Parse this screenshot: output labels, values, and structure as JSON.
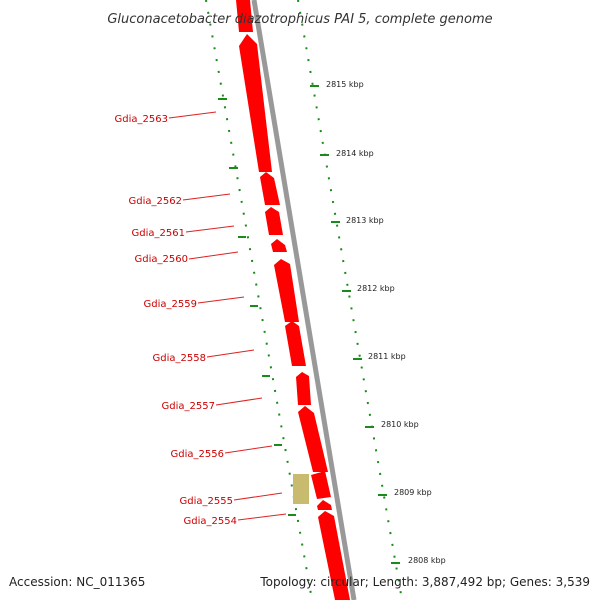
{
  "title": "Gluconacetobacter diazotrophicus PAI 5, complete genome",
  "footer": {
    "accession": "Accession: NC_011365",
    "summary": "Topology: circular; Length: 3,887,492 bp; Genes: 3,539"
  },
  "colors": {
    "gene": "#ff0000",
    "gene_alt": "#c8bb70",
    "backbone": "#999999",
    "tick": "#1a8a1a",
    "label_line": "#dd2222",
    "label_text": "#cc0000"
  },
  "genes": [
    {
      "locus_tag": "Gdia_2563"
    },
    {
      "locus_tag": "Gdia_2562"
    },
    {
      "locus_tag": "Gdia_2561"
    },
    {
      "locus_tag": "Gdia_2560"
    },
    {
      "locus_tag": "Gdia_2559"
    },
    {
      "locus_tag": "Gdia_2558"
    },
    {
      "locus_tag": "Gdia_2557"
    },
    {
      "locus_tag": "Gdia_2556"
    },
    {
      "locus_tag": "Gdia_2555"
    },
    {
      "locus_tag": "Gdia_2554"
    }
  ],
  "scale_ticks": [
    {
      "label": "2815 kbp"
    },
    {
      "label": "2814 kbp"
    },
    {
      "label": "2813 kbp"
    },
    {
      "label": "2812 kbp"
    },
    {
      "label": "2811 kbp"
    },
    {
      "label": "2810 kbp"
    },
    {
      "label": "2809 kbp"
    },
    {
      "label": "2808 kbp"
    }
  ]
}
